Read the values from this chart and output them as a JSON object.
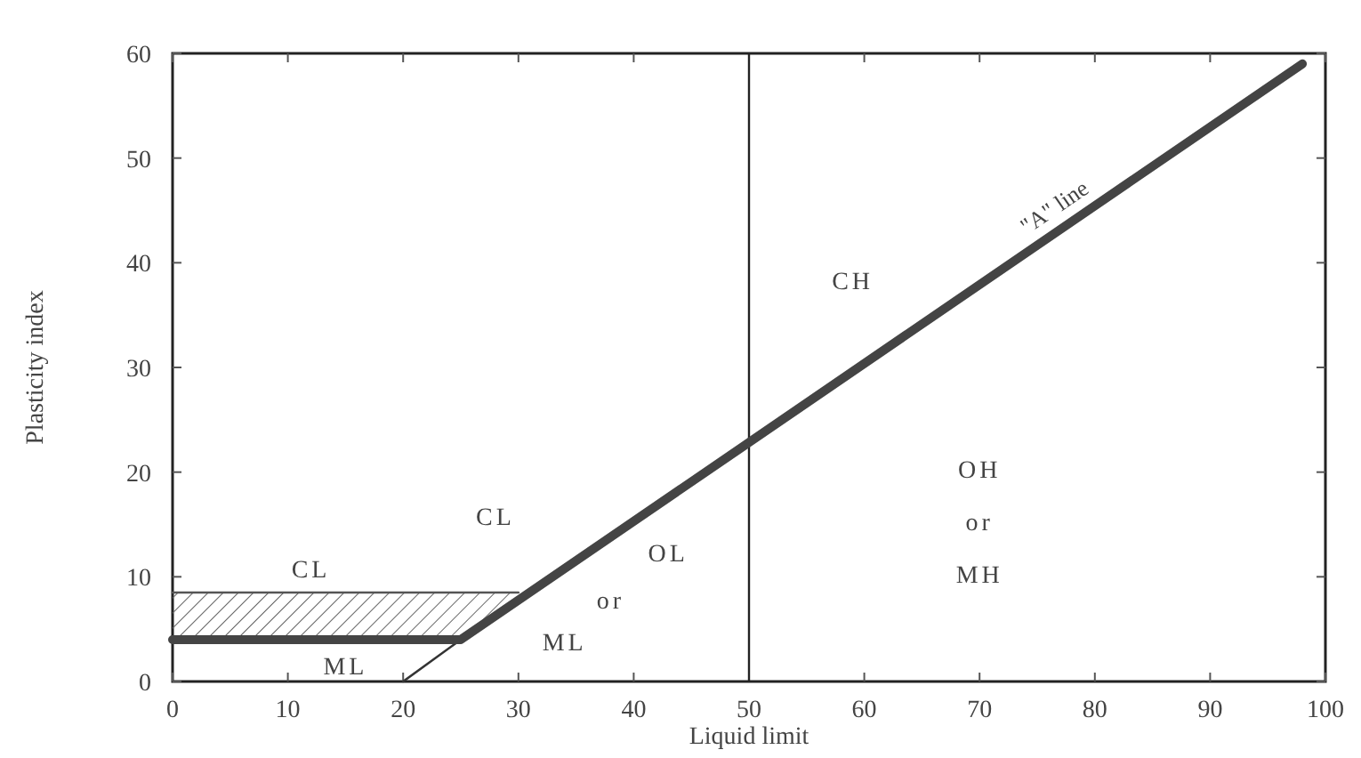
{
  "chart_data": {
    "type": "line",
    "xlabel": "Liquid limit",
    "ylabel": "Plasticity index",
    "xlim": [
      0,
      100
    ],
    "xticks": [
      0,
      10,
      20,
      30,
      40,
      50,
      60,
      70,
      80,
      90,
      100
    ],
    "ylim": [
      0,
      60
    ],
    "yticks": [
      0,
      10,
      20,
      30,
      40,
      50,
      60
    ],
    "grid": false,
    "marker": "none",
    "line_style": "solid",
    "series": [
      {
        "color": "#555555",
        "x": [
          0,
          30
        ],
        "values": [
          8.5,
          8.5
        ]
      },
      {
        "color": "#333333",
        "x": [
          20,
          25
        ],
        "values": [
          0,
          4
        ]
      },
      {
        "name": "\"A\" line",
        "color": "#444444",
        "x": [
          0,
          25,
          98
        ],
        "values": [
          4,
          4,
          59
        ]
      }
    ],
    "ref_lines": [
      {
        "axis": "x",
        "value": 50,
        "color": "#222222"
      }
    ],
    "annotations": [
      "CL",
      "ML",
      "CL",
      "OL",
      "or",
      "ML",
      "CH",
      "OH",
      "or",
      "MH"
    ]
  }
}
